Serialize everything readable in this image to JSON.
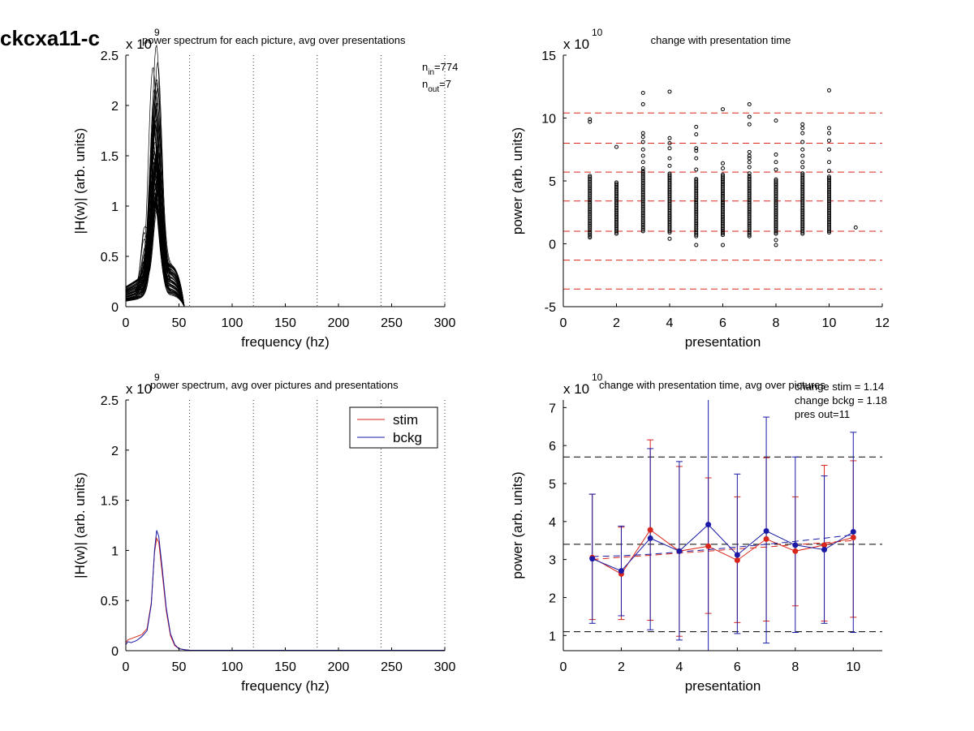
{
  "figure": {
    "title": "ckcxa11-c"
  },
  "chart_data": [
    {
      "id": "p1",
      "type": "line",
      "title": "power spectrum for each picture, avg over presentations",
      "xlabel": "frequency (hz)",
      "ylabel": "|H(w)| (arb. units)",
      "multiplier": "x 10",
      "multiplier_exp": "9",
      "xlim": [
        0,
        300
      ],
      "ylim": [
        0,
        2.5
      ],
      "xticks": [
        "0",
        "50",
        "100",
        "150",
        "200",
        "250",
        "300"
      ],
      "yticks": [
        "0",
        "0.5",
        "1",
        "1.5",
        "2",
        "2.5"
      ],
      "vlines_dotted": [
        60,
        120,
        180,
        240,
        300
      ],
      "annotations": [
        {
          "base": "n",
          "sub": "in",
          "value": "=774"
        },
        {
          "base": "n",
          "sub": "out",
          "value": "=7"
        }
      ],
      "series_style": {
        "color": "#000000",
        "count": 60
      },
      "peak_range": [
        0.85,
        2.3
      ],
      "peak_freq": 28,
      "low_freq_range": [
        0.05,
        0.2
      ],
      "cutoff_freq": 55
    },
    {
      "id": "p2",
      "type": "scatter",
      "title": "change with presentation time",
      "xlabel": "presentation",
      "ylabel": "power (arb. units)",
      "multiplier": "x 10",
      "multiplier_exp": "10",
      "xlim": [
        0,
        12
      ],
      "ylim": [
        -5,
        15
      ],
      "xticks": [
        "0",
        "2",
        "4",
        "6",
        "8",
        "10",
        "12"
      ],
      "yticks": [
        "-5",
        "0",
        "5",
        "10",
        "15"
      ],
      "hlines_dashed": [
        10.4,
        8.0,
        5.7,
        3.4,
        1.0,
        -1.3,
        -3.6
      ],
      "hline_color": "#d9261c",
      "columns": [
        {
          "x": 1,
          "range": [
            0.6,
            5.4
          ],
          "outliers": [
            0.5,
            9.7,
            9.9
          ]
        },
        {
          "x": 2,
          "range": [
            0.8,
            4.9
          ],
          "outliers": [
            7.7
          ]
        },
        {
          "x": 3,
          "range": [
            1.0,
            5.8
          ],
          "outliers": [
            6.0,
            6.5,
            7.0,
            7.5,
            8.1,
            8.5,
            8.8,
            11.1,
            12.0
          ]
        },
        {
          "x": 4,
          "range": [
            0.9,
            5.6
          ],
          "outliers": [
            0.4,
            6.2,
            6.8,
            7.6,
            8.0,
            8.4,
            12.1
          ]
        },
        {
          "x": 5,
          "range": [
            0.6,
            5.2
          ],
          "outliers": [
            -0.1,
            5.9,
            6.8,
            7.4,
            7.6,
            8.7,
            9.3
          ]
        },
        {
          "x": 6,
          "range": [
            0.7,
            5.6
          ],
          "outliers": [
            -0.1,
            6.0,
            6.4,
            10.7
          ]
        },
        {
          "x": 7,
          "range": [
            0.6,
            5.4
          ],
          "outliers": [
            5.6,
            6.1,
            6.5,
            6.8,
            7.0,
            7.3,
            9.5,
            10.1,
            11.1
          ]
        },
        {
          "x": 8,
          "range": [
            0.8,
            5.2
          ],
          "outliers": [
            -0.1,
            0.3,
            5.9,
            6.5,
            7.1,
            9.8
          ]
        },
        {
          "x": 9,
          "range": [
            0.8,
            5.6
          ],
          "outliers": [
            6.1,
            6.5,
            7.0,
            7.5,
            8.1,
            8.8,
            9.2,
            9.5
          ]
        },
        {
          "x": 10,
          "range": [
            0.9,
            5.4
          ],
          "outliers": [
            5.8,
            6.5,
            7.5,
            8.2,
            8.8,
            9.2,
            12.2
          ]
        },
        {
          "x": 11,
          "range": [
            1.3,
            1.3
          ],
          "outliers": []
        }
      ]
    },
    {
      "id": "p3",
      "type": "line",
      "title": "power spectrum, avg over pictures and presentations",
      "xlabel": "frequency (hz)",
      "ylabel": "|H(w)| (arb. units)",
      "multiplier": "x 10",
      "multiplier_exp": "9",
      "xlim": [
        0,
        300
      ],
      "ylim": [
        0,
        2.5
      ],
      "xticks": [
        "0",
        "50",
        "100",
        "150",
        "200",
        "250",
        "300"
      ],
      "yticks": [
        "0",
        "0.5",
        "1",
        "1.5",
        "2",
        "2.5"
      ],
      "vlines_dotted": [
        60,
        120,
        180,
        240,
        300
      ],
      "legend": [
        {
          "label": "stim",
          "color": "#d9261c"
        },
        {
          "label": "bckg",
          "color": "#1a1aa6"
        }
      ],
      "series": [
        {
          "name": "stim",
          "color": "#d9261c",
          "x": [
            0,
            2,
            5,
            10,
            15,
            20,
            24,
            27,
            29,
            31,
            34,
            38,
            42,
            46,
            50,
            55,
            60,
            80,
            120,
            160,
            200,
            240,
            300
          ],
          "y": [
            0.08,
            0.11,
            0.12,
            0.14,
            0.16,
            0.22,
            0.48,
            0.98,
            1.12,
            1.08,
            0.8,
            0.4,
            0.15,
            0.05,
            0.02,
            0.01,
            0.005,
            0.004,
            0.004,
            0.004,
            0.004,
            0.004,
            0.004
          ]
        },
        {
          "name": "bckg",
          "color": "#1a1aa6",
          "x": [
            0,
            2,
            5,
            10,
            15,
            20,
            24,
            27,
            29,
            31,
            34,
            38,
            42,
            46,
            50,
            55,
            60,
            80,
            120,
            160,
            200,
            240,
            300
          ],
          "y": [
            0.06,
            0.09,
            0.08,
            0.1,
            0.14,
            0.2,
            0.46,
            1.0,
            1.2,
            1.14,
            0.85,
            0.43,
            0.17,
            0.06,
            0.02,
            0.01,
            0.005,
            0.004,
            0.004,
            0.004,
            0.004,
            0.004,
            0.004
          ]
        }
      ]
    },
    {
      "id": "p4",
      "type": "line",
      "title": "change with presentation time, avg over pictures",
      "xlabel": "presentation",
      "ylabel": "power (arb. units)",
      "multiplier": "x 10",
      "multiplier_exp": "10",
      "xlim": [
        0,
        11
      ],
      "ylim": [
        0.6,
        7.2
      ],
      "xticks": [
        "0",
        "2",
        "4",
        "6",
        "8",
        "10"
      ],
      "yticks": [
        "1",
        "2",
        "3",
        "4",
        "5",
        "6",
        "7"
      ],
      "hlines_dashed": [
        5.7,
        3.4,
        1.1
      ],
      "annotations": [
        "change stim = 1.14",
        "change bckg = 1.18",
        "pres out=11"
      ],
      "x": [
        1,
        2,
        3,
        4,
        5,
        6,
        7,
        8,
        9,
        10
      ],
      "series": [
        {
          "name": "stim",
          "color": "#d9261c",
          "values": [
            3.05,
            2.62,
            3.78,
            3.22,
            3.35,
            2.98,
            3.54,
            3.22,
            3.38,
            3.58
          ],
          "err_low": [
            1.42,
            1.42,
            1.4,
            0.98,
            1.58,
            1.34,
            1.38,
            1.78,
            1.38,
            1.48
          ],
          "err_high": [
            4.72,
            3.85,
            6.15,
            5.45,
            5.15,
            4.65,
            5.68,
            4.65,
            5.48,
            5.6
          ],
          "trend": [
            3.0,
            3.06,
            3.11,
            3.17,
            3.22,
            3.28,
            3.33,
            3.39,
            3.44,
            3.5
          ]
        },
        {
          "name": "bckg",
          "color": "#1a1aa6",
          "values": [
            3.02,
            2.7,
            3.56,
            3.22,
            3.92,
            3.12,
            3.75,
            3.38,
            3.26,
            3.73
          ],
          "err_low": [
            1.32,
            1.52,
            1.15,
            0.88,
            0.4,
            1.05,
            0.8,
            1.08,
            1.32,
            1.08
          ],
          "err_high": [
            4.72,
            3.88,
            5.92,
            5.58,
            7.4,
            5.25,
            6.75,
            5.7,
            5.2,
            6.35
          ],
          "trend": [
            3.08,
            3.1,
            3.14,
            3.2,
            3.26,
            3.33,
            3.4,
            3.48,
            3.56,
            3.65
          ]
        }
      ]
    }
  ]
}
